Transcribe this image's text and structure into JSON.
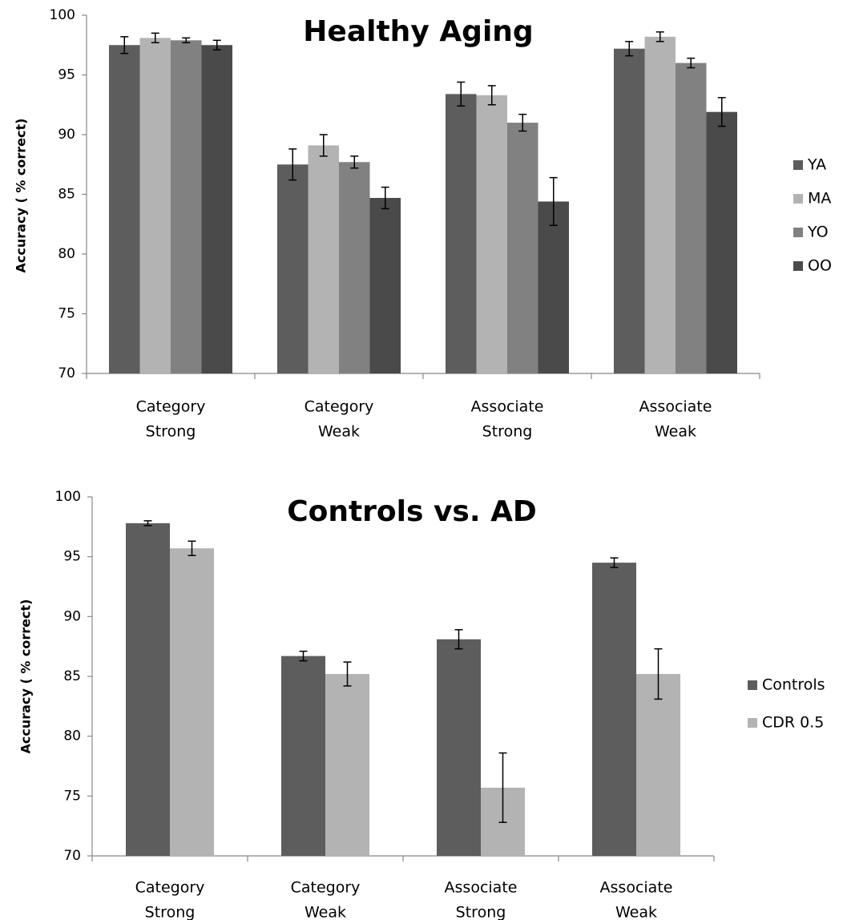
{
  "chart_data": [
    {
      "type": "bar",
      "title": "Healthy Aging",
      "ylabel": "Accuracy  ( % correct)",
      "xlabel": "",
      "ylim": [
        70,
        100
      ],
      "yticks": [
        70,
        75,
        80,
        85,
        90,
        95,
        100
      ],
      "categories": [
        [
          "Category",
          "Strong"
        ],
        [
          "Category",
          "Weak"
        ],
        [
          "Associate",
          "Strong"
        ],
        [
          "Associate",
          "Weak"
        ]
      ],
      "legend_position": "right",
      "series": [
        {
          "name": "YA",
          "color": "#5d5d5d",
          "values": [
            97.5,
            87.5,
            93.4,
            97.2
          ],
          "errors": [
            0.7,
            1.3,
            1.0,
            0.6
          ]
        },
        {
          "name": "MA",
          "color": "#b3b3b3",
          "values": [
            98.1,
            89.1,
            93.3,
            98.2
          ],
          "errors": [
            0.4,
            0.9,
            0.8,
            0.4
          ]
        },
        {
          "name": "YO",
          "color": "#818181",
          "values": [
            97.9,
            87.7,
            91.0,
            96.0
          ],
          "errors": [
            0.2,
            0.5,
            0.7,
            0.4
          ]
        },
        {
          "name": "OO",
          "color": "#4a4a4a",
          "values": [
            97.5,
            84.7,
            84.4,
            91.9
          ],
          "errors": [
            0.4,
            0.9,
            2.0,
            1.2
          ]
        }
      ]
    },
    {
      "type": "bar",
      "title": "Controls vs. AD",
      "ylabel": "Accuracy  ( % correct)",
      "xlabel": "",
      "ylim": [
        70,
        100
      ],
      "yticks": [
        70,
        75,
        80,
        85,
        90,
        95,
        100
      ],
      "categories": [
        [
          "Category",
          "Strong"
        ],
        [
          "Category",
          "Weak"
        ],
        [
          "Associate",
          "Strong"
        ],
        [
          "Associate",
          "Weak"
        ]
      ],
      "legend_position": "right",
      "series": [
        {
          "name": "Controls",
          "color": "#5d5d5d",
          "values": [
            97.8,
            86.7,
            88.1,
            94.5
          ],
          "errors": [
            0.2,
            0.4,
            0.8,
            0.4
          ]
        },
        {
          "name": "CDR 0.5",
          "color": "#b3b3b3",
          "values": [
            95.7,
            85.2,
            75.7,
            85.2
          ],
          "errors": [
            0.6,
            1.0,
            2.9,
            2.1
          ]
        }
      ]
    }
  ]
}
